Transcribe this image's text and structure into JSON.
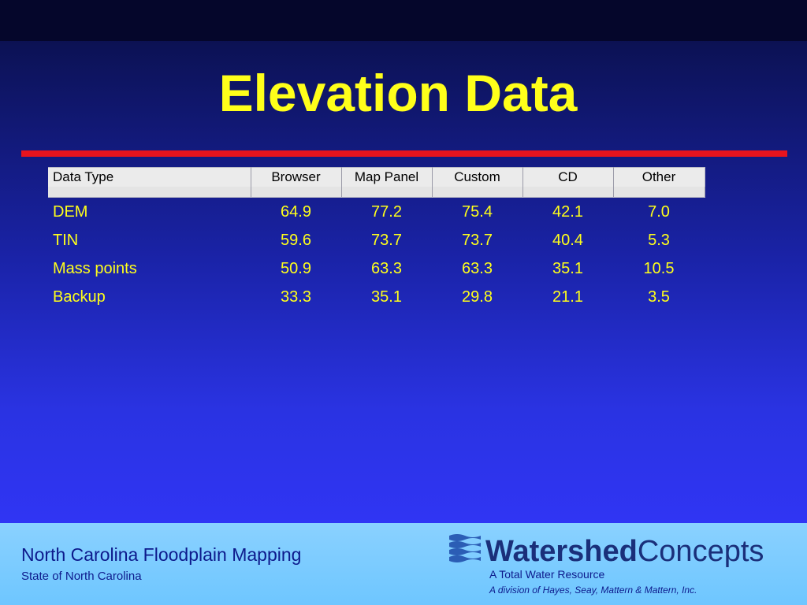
{
  "slide": {
    "title": "Elevation Data"
  },
  "table": {
    "headers": [
      "Data Type",
      "Browser",
      "Map Panel",
      "Custom",
      "CD",
      "Other"
    ],
    "rows": [
      [
        "DEM",
        "64.9",
        "77.2",
        "75.4",
        "42.1",
        "7.0"
      ],
      [
        "TIN",
        "59.6",
        "73.7",
        "73.7",
        "40.4",
        "5.3"
      ],
      [
        "Mass points",
        "50.9",
        "63.3",
        "63.3",
        "35.1",
        "10.5"
      ],
      [
        "Backup",
        "33.3",
        "35.1",
        "29.8",
        "21.1",
        "3.5"
      ]
    ]
  },
  "footer": {
    "title": "North Carolina Floodplain Mapping",
    "subtitle": "State of North Carolina",
    "logo_bold": "Watershed",
    "logo_regular": "Concepts",
    "tagline": "A Total Water Resource",
    "division": "A division of Hayes, Seay, Mattern & Mattern, Inc."
  },
  "colors": {
    "title_text": "#ffff1a",
    "accent_rule": "#e8141e",
    "footer_text": "#0d1a8c"
  },
  "icons": {
    "logo_mark": "watershed-waves-logo"
  }
}
